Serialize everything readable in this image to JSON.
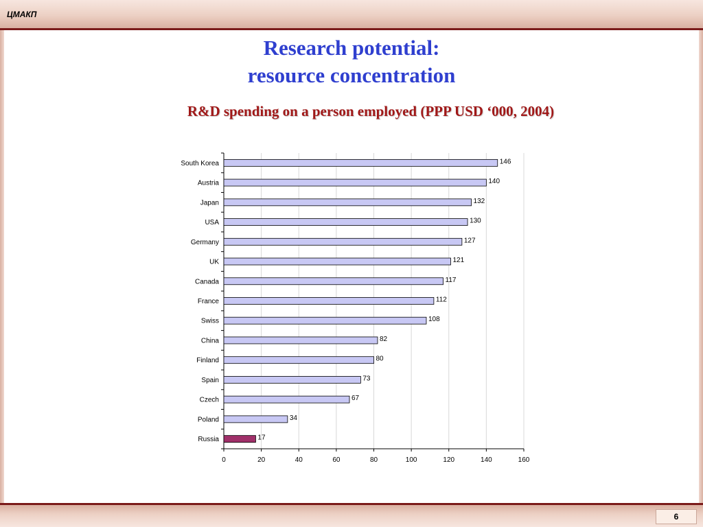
{
  "header": {
    "label": "ЦМАКП"
  },
  "title_line1": "Research potential:",
  "title_line2": "resource concentration",
  "subtitle": "R&D spending on a person employed (PPP USD ‘000, 2004)",
  "page_number": "6",
  "colors": {
    "bar": "#c8c8f4",
    "highlight": "#a0306a",
    "title": "#2f3fcf",
    "subtitle": "#a01818"
  },
  "chart_data": {
    "type": "bar",
    "orientation": "horizontal",
    "categories": [
      "South Korea",
      "Austria",
      "Japan",
      "USA",
      "Germany",
      "UK",
      "Canada",
      "France",
      "Swiss",
      "China",
      "Finland",
      "Spain",
      "Czech",
      "Poland",
      "Russia"
    ],
    "values": [
      146,
      140,
      132,
      130,
      127,
      121,
      117,
      112,
      108,
      82,
      80,
      73,
      67,
      34,
      17
    ],
    "value_labels": [
      "146",
      "140",
      "132",
      "130",
      "127",
      "121",
      "117",
      "112",
      "108",
      "82",
      "80",
      "73",
      "67",
      "34",
      "17"
    ],
    "highlight_category": "Russia",
    "xlim": [
      0,
      160
    ],
    "xticks": [
      "0",
      "20",
      "40",
      "60",
      "80",
      "100",
      "120",
      "140",
      "160"
    ],
    "grid": true
  }
}
